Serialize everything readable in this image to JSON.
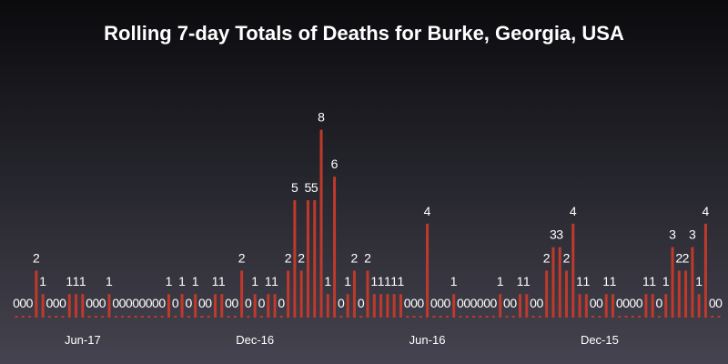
{
  "chart_data": {
    "type": "bar",
    "title": "Rolling 7-day Totals of Deaths for Burke, Georgia, USA",
    "xlabel": "",
    "ylabel": "",
    "ylim": [
      0,
      8
    ],
    "grid": false,
    "bar_color": "#c0392b",
    "text_color": "#ffffff",
    "x_tick_labels": [
      {
        "label": "Jun-17",
        "index": 10
      },
      {
        "label": "Dec-16",
        "index": 36
      },
      {
        "label": "Jun-16",
        "index": 62
      },
      {
        "label": "Dec-15",
        "index": 88
      }
    ],
    "values": [
      0,
      0,
      0,
      2,
      1,
      0,
      0,
      0,
      1,
      1,
      1,
      0,
      0,
      0,
      1,
      0,
      0,
      0,
      0,
      0,
      0,
      0,
      0,
      1,
      0,
      1,
      0,
      1,
      0,
      0,
      1,
      1,
      0,
      0,
      2,
      0,
      1,
      0,
      1,
      1,
      0,
      2,
      5,
      2,
      5,
      5,
      8,
      1,
      6,
      0,
      1,
      2,
      0,
      2,
      1,
      1,
      1,
      1,
      1,
      0,
      0,
      0,
      4,
      0,
      0,
      0,
      1,
      0,
      0,
      0,
      0,
      0,
      0,
      1,
      0,
      0,
      1,
      1,
      0,
      0,
      2,
      3,
      3,
      2,
      4,
      1,
      1,
      0,
      0,
      1,
      1,
      0,
      0,
      0,
      0,
      1,
      1,
      0,
      1,
      3,
      2,
      2,
      3,
      1,
      4,
      0,
      0
    ]
  }
}
